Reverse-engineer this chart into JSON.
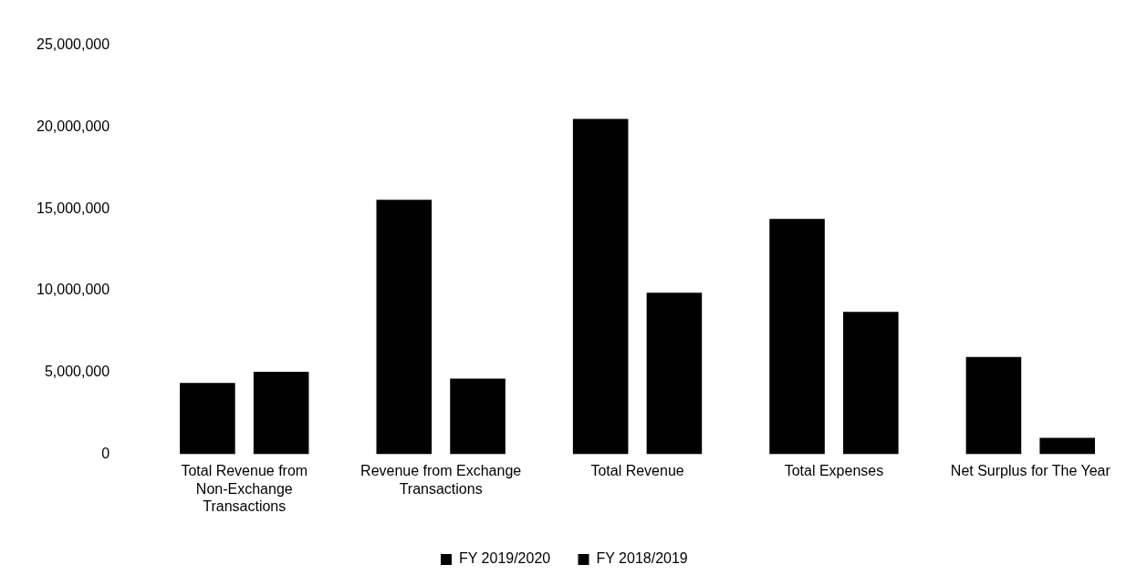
{
  "chart_data": {
    "type": "bar",
    "categories": [
      "Total Revenue from Non-Exchange Transactions",
      "Revenue from Exchange Transactions",
      "Total Revenue",
      "Total Expenses",
      "Net Surplus for The Year"
    ],
    "series": [
      {
        "name": "FY 2019/2020",
        "color": "#000000",
        "values": [
          4350000,
          15550000,
          20490000,
          14380000,
          5940000
        ]
      },
      {
        "name": "FY 2018/2019",
        "color": "#000000",
        "values": [
          5040000,
          4620000,
          9870000,
          8700000,
          1000000
        ]
      }
    ],
    "ylim": [
      0,
      25000000
    ],
    "yticks": [
      0,
      {
        "value": 5000000,
        "label": "5,000,000"
      },
      {
        "value": 10000000,
        "label": "10,000,000"
      },
      {
        "value": 15000000,
        "label": "15,000,000"
      },
      {
        "value": 20000000,
        "label": "20,000,000"
      },
      {
        "value": 25000000,
        "label": "25,000,000"
      }
    ],
    "grid": false,
    "legend": "bottom"
  }
}
